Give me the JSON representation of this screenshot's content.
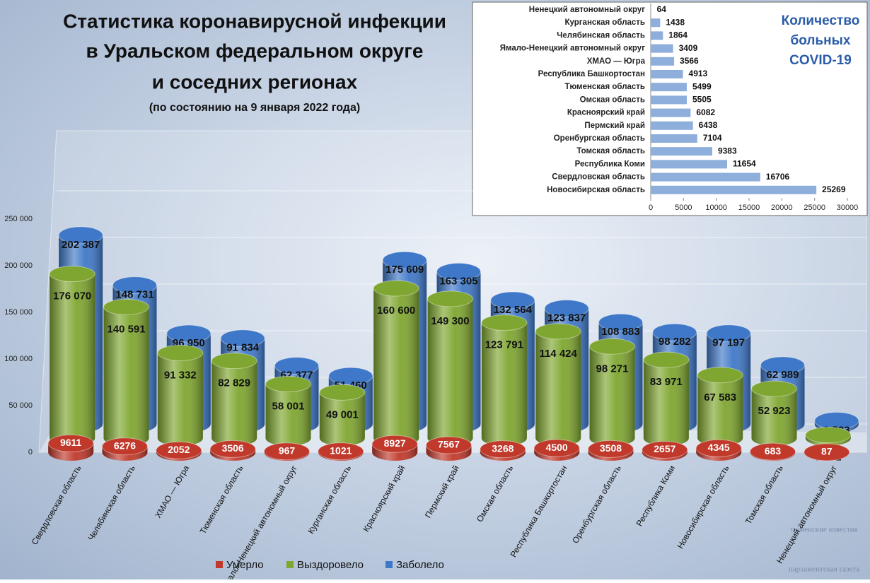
{
  "title_lines": [
    "Статистика коронавирусной инфекции",
    "в Уральском федеральном округе",
    "и соседних регионах"
  ],
  "subtitle": "(по состоянию  на 9 января 2022 года)",
  "logo": {
    "top": "тюменские известия",
    "bottom": "парламентская газета"
  },
  "chart_data": [
    {
      "type": "bar",
      "categories": [
        "Свердловская область",
        "Челябинская область",
        "ХМАО — Югра",
        "Тюменская область",
        "Ямало–Ненецкий автономный округ",
        "Курганская область",
        "Красноярский край",
        "Пермский край",
        "Омская область",
        "Республика Башкортостан",
        "Оренбургская область",
        "Республика Коми",
        "Новосибирская область",
        "Томская область",
        "Ненецкий автономный округ"
      ],
      "series": [
        {
          "name": "Умерло",
          "color": "#c0392b",
          "values": [
            9611,
            6276,
            2052,
            3506,
            967,
            1021,
            8927,
            7567,
            3268,
            4500,
            3508,
            2657,
            4345,
            683,
            87
          ]
        },
        {
          "name": "Выздоровело",
          "color": "#7fa630",
          "values": [
            176070,
            140591,
            91332,
            82829,
            58001,
            49001,
            160600,
            149300,
            123791,
            114424,
            98271,
            83971,
            67583,
            52923,
            3372
          ],
          "value_labels": [
            "176 070",
            "140 591",
            "91 332",
            "82 829",
            "58 001",
            "49 001",
            "160 600",
            "149 300",
            "123 791",
            "114 424",
            "98 271",
            "83 971",
            "67 583",
            "52 923",
            "3 372"
          ]
        },
        {
          "name": "Заболело",
          "color": "#3f78c8",
          "values": [
            202387,
            148731,
            96950,
            91834,
            62377,
            51460,
            175609,
            163305,
            132564,
            123837,
            108883,
            98282,
            97197,
            62989,
            3523
          ],
          "value_labels": [
            "202 387",
            "148 731",
            "96 950",
            "91 834",
            "62 377",
            "51 460",
            "175 609",
            "163 305",
            "132 564",
            "123 837",
            "108 883",
            "98 282",
            "97 197",
            "62 989",
            "3 523"
          ]
        }
      ],
      "ylim": [
        0,
        250000
      ],
      "yticks": [
        0,
        {
          "value": 50000,
          "label": "50 000"
        },
        {
          "value": 100000,
          "label": "100 000"
        },
        {
          "value": 150000,
          "label": "150 000"
        },
        {
          "value": 200000,
          "label": "200 000"
        },
        {
          "value": 250000,
          "label": "250 000"
        }
      ],
      "grid": true,
      "legend": "bottom"
    },
    {
      "type": "barh",
      "title_lines": [
        "Количество",
        "больных",
        "COVID-19"
      ],
      "categories": [
        "Ненецкий автономный округ",
        "Курганская  область",
        "Челябинская область",
        "Ямало-Ненецкий автономный округ",
        "ХМАО — Югра",
        "Республика Башкортостан",
        "Тюменская область",
        "Омская область",
        "Красноярский край",
        "Пермский край",
        "Оренбургская область",
        "Томская область",
        "Республика Коми",
        "Свердловская область",
        "Новосибирская область"
      ],
      "values": [
        64,
        1438,
        1864,
        3409,
        3566,
        4913,
        5499,
        5505,
        6082,
        6438,
        7104,
        9383,
        11654,
        16706,
        25269
      ],
      "color": "#8eaedb",
      "xlim": [
        0,
        30000
      ],
      "xticks": [
        0,
        5000,
        10000,
        15000,
        20000,
        25000,
        30000
      ]
    }
  ]
}
